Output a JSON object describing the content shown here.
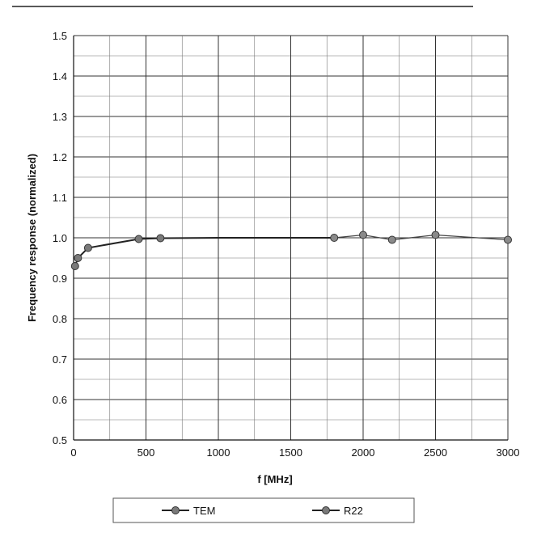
{
  "chart_data": {
    "type": "line",
    "title": "",
    "xlabel": "f [MHz]",
    "ylabel": "Frequency response (normalized)",
    "xlim": [
      0,
      3000
    ],
    "ylim": [
      0.5,
      1.5
    ],
    "x_ticks": [
      "0",
      "500",
      "1000",
      "1500",
      "2000",
      "2500",
      "3000"
    ],
    "y_ticks": [
      "0.5",
      "0.6",
      "0.7",
      "0.8",
      "0.9",
      "1.0",
      "1.1",
      "1.2",
      "1.3",
      "1.4",
      "1.5"
    ],
    "grid": true,
    "legend": "bottom",
    "series": [
      {
        "name": "TEM",
        "color": "#444444",
        "x": [
          10,
          30,
          100,
          450,
          600,
          1000,
          1500
        ],
        "y": [
          0.93,
          0.95,
          0.975,
          0.997,
          0.999,
          1.0,
          1.0
        ]
      },
      {
        "name": "R22",
        "color": "#888888",
        "x": [
          1800,
          2000,
          2200,
          2500,
          3000
        ],
        "y": [
          1.0,
          1.007,
          0.995,
          1.007,
          0.995
        ]
      }
    ]
  }
}
